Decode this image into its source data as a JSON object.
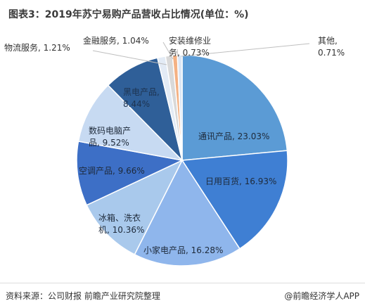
{
  "title": "图表3：2019年苏宁易购产品营收占比情况(单位：%)",
  "footer": {
    "source": "资料来源：公司财报 前瞻产业研究院整理",
    "brand": "@前瞻经济学人APP"
  },
  "chart_data": {
    "type": "pie",
    "title": "图表3：2019年苏宁易购产品营收占比情况(单位：%)",
    "slices": [
      {
        "label": "通讯产品",
        "value": 23.03,
        "color": "#5b9bd5",
        "label_lines": [
          "通讯产品, 23.03%"
        ]
      },
      {
        "label": "日用百货",
        "value": 16.93,
        "color": "#3f7fd3",
        "label_lines": [
          "日用百货, 16.93%"
        ]
      },
      {
        "label": "小家电产品",
        "value": 16.28,
        "color": "#8fb6ec",
        "label_lines": [
          "小家电产品, 16.28%"
        ]
      },
      {
        "label": "冰箱、洗衣机",
        "value": 10.36,
        "color": "#a9c9ec",
        "label_lines": [
          "冰箱、洗衣",
          "机, 10.36%"
        ]
      },
      {
        "label": "空调产品",
        "value": 9.66,
        "color": "#3d6fc6",
        "label_lines": [
          "空调产品, 9.66%"
        ]
      },
      {
        "label": "数码电脑产品",
        "value": 9.52,
        "color": "#c7daf2",
        "label_lines": [
          "数码电脑产",
          "品, 9.52%"
        ]
      },
      {
        "label": "黑电产品",
        "value": 8.44,
        "color": "#2f5f98",
        "label_lines": [
          "黑电产品,",
          "8.44%"
        ]
      },
      {
        "label": "物流服务",
        "value": 1.21,
        "color": "#e3ebf5",
        "label_lines": [
          "物流服务, 1.21%"
        ]
      },
      {
        "label": "金融服务",
        "value": 1.04,
        "color": "#d9d9d9",
        "label_lines": [
          "金融服务, 1.04%"
        ]
      },
      {
        "label": "安装维修业务",
        "value": 0.73,
        "color": "#f4b183",
        "label_lines": [
          "安装维修业",
          "务, 0.73%"
        ]
      },
      {
        "label": "其他",
        "value": 0.71,
        "color": "#dbe6f4",
        "label_lines": [
          "其他,",
          "0.71%"
        ]
      }
    ]
  }
}
